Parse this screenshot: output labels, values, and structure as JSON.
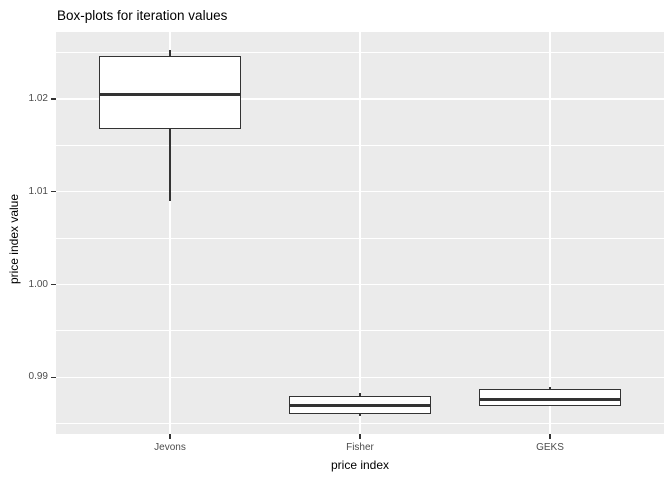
{
  "figure": {
    "title": "Box-plots for iteration values"
  },
  "chart_data": {
    "type": "boxplot",
    "title": "Box-plots for iteration values",
    "xlabel": "price index",
    "ylabel": "price index value",
    "categories": [
      "Jevons",
      "Fisher",
      "GEKS"
    ],
    "ylim": [
      0.9839,
      1.0272
    ],
    "grid": true,
    "legend": false,
    "y_ticks": [
      {
        "value": 0.99,
        "label": "0.99"
      },
      {
        "value": 1.0,
        "label": "1.00"
      },
      {
        "value": 1.01,
        "label": "1.01"
      },
      {
        "value": 1.02,
        "label": "1.02"
      }
    ],
    "y_minor_ticks": [
      0.985,
      0.995,
      1.005,
      1.015,
      1.025
    ],
    "series": [
      {
        "name": "Jevons",
        "whisker_low": 1.009,
        "q1": 1.0167,
        "median": 1.0205,
        "q3": 1.0246,
        "whisker_high": 1.0253
      },
      {
        "name": "Fisher",
        "whisker_low": 0.9858,
        "q1": 0.9861,
        "median": 0.987,
        "q3": 0.988,
        "whisker_high": 0.9883
      },
      {
        "name": "GEKS",
        "whisker_low": 0.9869,
        "q1": 0.9869,
        "median": 0.9876,
        "q3": 0.9887,
        "whisker_high": 0.989
      }
    ],
    "colors": {
      "panel_background": "#EBEBEB",
      "gridline": "#FFFFFF",
      "box_fill": "#FFFFFF",
      "box_stroke": "#333333",
      "tick_label": "#4D4D4D",
      "text": "#000000"
    }
  }
}
